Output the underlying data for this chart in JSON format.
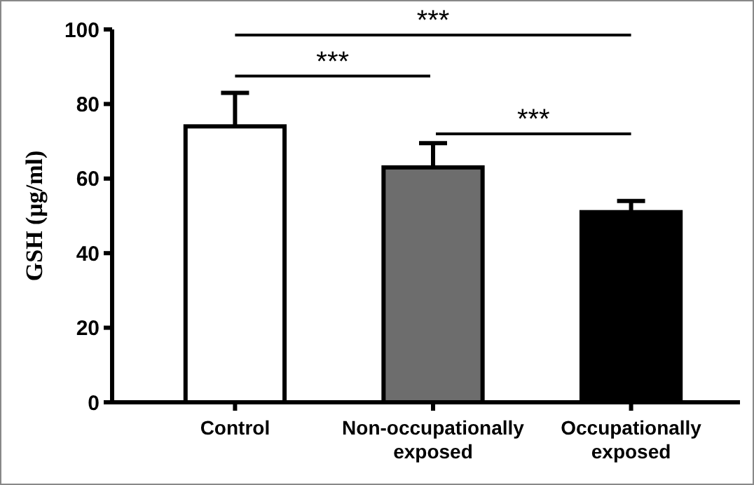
{
  "chart_data": {
    "type": "bar",
    "ylabel": "GSH (μg/ml)",
    "categories": [
      "Control",
      "Non-occupationally exposed",
      "Occupationally exposed"
    ],
    "values": [
      74,
      63,
      51
    ],
    "colors": [
      "#ffffff",
      "#6d6d6d",
      "#000000"
    ],
    "errors": [
      [
        74,
        83
      ],
      [
        63,
        69.5
      ],
      [
        51,
        54
      ]
    ],
    "ylim": [
      0,
      100
    ],
    "yticks": [
      0,
      20,
      40,
      60,
      80,
      100
    ],
    "grid": false,
    "annotations": [
      "***",
      "***",
      "***"
    ]
  }
}
